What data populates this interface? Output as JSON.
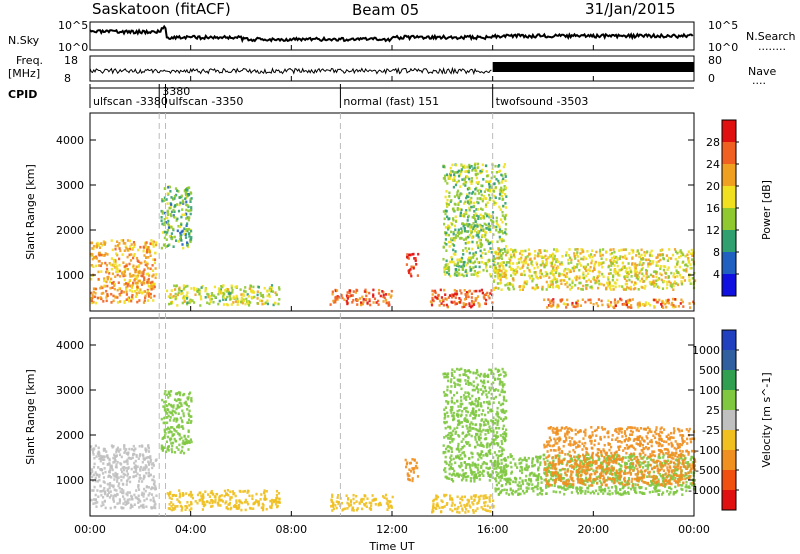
{
  "header": {
    "station": "Saskatoon (fitACF)",
    "beam": "Beam 05",
    "date": "31/Jan/2015"
  },
  "panels": {
    "nsky_label": "N.Sky",
    "nsky_ticks": [
      "10^5",
      "10^0"
    ],
    "nsearch_label": "N.Search",
    "nsearch_dots": "........",
    "nsearch_ticks": [
      "10^5",
      "10^0"
    ],
    "freq_label_1": "Freq.",
    "freq_label_2": "[MHz]",
    "freq_ticks": [
      "18",
      "8"
    ],
    "nave_label": "Nave",
    "nave_dots": "....",
    "nave_ticks": [
      "80",
      "0"
    ],
    "cpid_label": "CPID",
    "cpid_segments": [
      {
        "label": "ulfscan -3380",
        "start_h": 0.0,
        "end_h": 2.75
      },
      {
        "label": "3380",
        "start_h": 2.75,
        "end_h": 3.0
      },
      {
        "label": "ulfscan -3350",
        "start_h": 3.0,
        "end_h": 9.95
      },
      {
        "label": "normal (fast) 151",
        "start_h": 9.95,
        "end_h": 16.0
      },
      {
        "label": "twofsound -3503",
        "start_h": 16.0,
        "end_h": 24.0
      }
    ]
  },
  "axes": {
    "xlabel": "Time UT",
    "x_ticks": [
      "00:00",
      "04:00",
      "08:00",
      "12:00",
      "16:00",
      "20:00",
      "00:00"
    ],
    "ylabel": "Slant Range [km]",
    "y_ticks": [
      "1000",
      "2000",
      "3000",
      "4000"
    ]
  },
  "colorbars": {
    "power": {
      "label": "Power [dB]",
      "ticks": [
        "4",
        "8",
        "12",
        "16",
        "20",
        "24",
        "28"
      ],
      "colors": [
        "#1010e0",
        "#2060c0",
        "#30a070",
        "#90c830",
        "#f0e020",
        "#f0a020",
        "#f06020",
        "#e01010"
      ]
    },
    "velocity": {
      "label": "Velocity [m s^-1]",
      "ticks": [
        "1000",
        "500",
        "100",
        "25",
        "-25",
        "-100",
        "-500",
        "-1000"
      ],
      "colors": [
        "#2040c0",
        "#3060a0",
        "#30a050",
        "#80c840",
        "#c0c0c0",
        "#f0c020",
        "#f09020",
        "#f05010",
        "#e01010"
      ]
    }
  },
  "chart_data": {
    "type": "heatmap",
    "title": "Saskatoon (fitACF)",
    "xlabel": "Time UT",
    "ylabel": "Slant Range [km]",
    "xlim": [
      0,
      24
    ],
    "ylim": [
      200,
      4600
    ],
    "x_ticks": [
      "00:00",
      "04:00",
      "08:00",
      "12:00",
      "16:00",
      "20:00",
      "00:00"
    ],
    "y_ticks": [
      1000,
      2000,
      3000,
      4000
    ],
    "series": [
      {
        "name": "Power",
        "unit": "dB",
        "regions": [
          {
            "t0": 0.0,
            "t1": 2.6,
            "r0": 400,
            "r1": 1800,
            "value": 22
          },
          {
            "t0": 2.8,
            "t1": 4.0,
            "r0": 1600,
            "r1": 3000,
            "value": 12
          },
          {
            "t0": 3.0,
            "t1": 7.5,
            "r0": 350,
            "r1": 800,
            "value": 16
          },
          {
            "t0": 9.5,
            "t1": 12.0,
            "r0": 350,
            "r1": 700,
            "value": 26
          },
          {
            "t0": 12.5,
            "t1": 13.0,
            "r0": 1000,
            "r1": 1500,
            "value": 28
          },
          {
            "t0": 13.5,
            "t1": 16.0,
            "r0": 300,
            "r1": 700,
            "value": 26
          },
          {
            "t0": 14.0,
            "t1": 16.5,
            "r0": 1000,
            "r1": 3500,
            "value": 14
          },
          {
            "t0": 16.0,
            "t1": 24.0,
            "r0": 700,
            "r1": 1600,
            "value": 18
          },
          {
            "t0": 18.0,
            "t1": 24.0,
            "r0": 300,
            "r1": 500,
            "value": 24
          }
        ]
      },
      {
        "name": "Velocity",
        "unit": "m s^-1",
        "regions": [
          {
            "t0": 0.0,
            "t1": 2.6,
            "r0": 400,
            "r1": 1800,
            "value": -25
          },
          {
            "t0": 2.8,
            "t1": 4.0,
            "r0": 1600,
            "r1": 3000,
            "value": 25
          },
          {
            "t0": 3.0,
            "t1": 7.5,
            "r0": 350,
            "r1": 800,
            "value": -100
          },
          {
            "t0": 9.5,
            "t1": 12.0,
            "r0": 350,
            "r1": 700,
            "value": -100
          },
          {
            "t0": 12.5,
            "t1": 13.0,
            "r0": 1000,
            "r1": 1500,
            "value": -500
          },
          {
            "t0": 13.5,
            "t1": 16.0,
            "r0": 300,
            "r1": 700,
            "value": -100
          },
          {
            "t0": 14.0,
            "t1": 16.5,
            "r0": 1000,
            "r1": 3500,
            "value": 25
          },
          {
            "t0": 16.0,
            "t1": 24.0,
            "r0": 700,
            "r1": 1600,
            "value": 25
          },
          {
            "t0": 18.0,
            "t1": 24.0,
            "r0": 900,
            "r1": 2200,
            "value": -500
          }
        ]
      }
    ]
  }
}
